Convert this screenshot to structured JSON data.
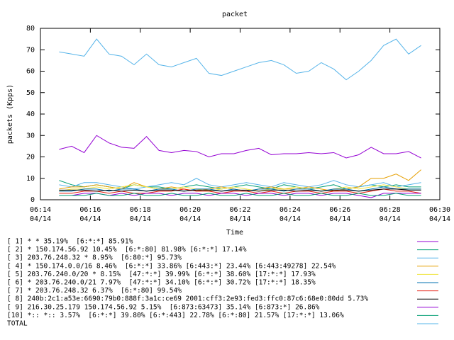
{
  "chart_data": {
    "type": "line",
    "title": "packet",
    "y_label": "packets (Kpps)",
    "x_label": "Time",
    "xlim": [
      374,
      390
    ],
    "ylim": [
      0,
      80
    ],
    "xticks": [
      {
        "value": 374,
        "label": "06:14"
      },
      {
        "value": 376,
        "label": "06:16"
      },
      {
        "value": 378,
        "label": "06:18"
      },
      {
        "value": 380,
        "label": "06:20"
      },
      {
        "value": 382,
        "label": "06:22"
      },
      {
        "value": 384,
        "label": "06:24"
      },
      {
        "value": 386,
        "label": "06:26"
      },
      {
        "value": 388,
        "label": "06:28"
      },
      {
        "value": 390,
        "label": "06:30"
      }
    ],
    "xtick_date": "04/14",
    "yticks": [
      0,
      10,
      20,
      30,
      40,
      50,
      60,
      70,
      80
    ],
    "x": [
      374.75,
      375.25,
      375.75,
      376.25,
      376.75,
      377.25,
      377.75,
      378.25,
      378.75,
      379.25,
      379.75,
      380.25,
      380.75,
      381.25,
      381.75,
      382.25,
      382.75,
      383.25,
      383.75,
      384.25,
      384.75,
      385.25,
      385.75,
      386.25,
      386.75,
      387.25,
      387.75,
      388.25,
      388.75,
      389.25
    ],
    "series": [
      {
        "name": "[ 1] * * 35.19%  [6:*:*] 85.91%",
        "color": "#9400d3",
        "values": [
          23.5,
          25,
          22,
          30,
          26.5,
          24.5,
          24,
          29.5,
          23,
          22,
          23,
          22.5,
          20,
          21.5,
          21.5,
          23,
          24,
          21,
          21.5,
          21.5,
          22,
          21.5,
          22,
          19.5,
          21,
          24.5,
          21.5,
          21.5,
          22.5,
          19.5
        ]
      },
      {
        "name": "[ 2] * 150.174.56.92 10.45%  [6:*:80] 81.98% [6:*:*] 17.14%",
        "color": "#009e73",
        "values": [
          9,
          7,
          6,
          7,
          6,
          5,
          7,
          6,
          6,
          5,
          6,
          7,
          6,
          5,
          6,
          7,
          6,
          5,
          7,
          6,
          5,
          6,
          7,
          5,
          6,
          7,
          6,
          7,
          6,
          6
        ]
      },
      {
        "name": "[ 3] 203.76.248.32 * 8.95%  [6:80:*] 95.73%",
        "color": "#56b4e9",
        "values": [
          7,
          6,
          8,
          8,
          7,
          6,
          5,
          6,
          7,
          8,
          7,
          10,
          7,
          6,
          7,
          8,
          7,
          6,
          8,
          7,
          6,
          7,
          9,
          7,
          6,
          7,
          8,
          6,
          7,
          8
        ]
      },
      {
        "name": "[ 4] * 150.174.0.0/16 8.46%  [6:*:*] 33.86% [6:443:*] 23.44% [6:443:49278] 22.54%",
        "color": "#e69f00",
        "values": [
          5,
          6,
          6,
          7,
          6,
          5,
          8,
          6,
          5,
          6,
          5,
          4,
          5,
          6,
          5,
          4,
          5,
          6,
          5,
          5,
          6,
          5,
          4,
          5,
          6,
          10,
          10,
          12,
          9,
          14
        ]
      },
      {
        "name": "[ 5] 203.76.240.0/20 * 8.15%  [47:*:*] 39.99% [6:*:*] 38.60% [17:*:*] 17.93%",
        "color": "#f0e442",
        "values": [
          4,
          5,
          5,
          6,
          5,
          6,
          7,
          6,
          5,
          5,
          6,
          5,
          4,
          5,
          6,
          5,
          4,
          5,
          5,
          6,
          5,
          4,
          5,
          6,
          5,
          6,
          7,
          6,
          5,
          5
        ]
      },
      {
        "name": "[ 6] * 203.76.240.0/21 7.97%  [47:*:*] 34.10% [6:*:*] 30.72% [17:*:*] 18.35%",
        "color": "#0072b2",
        "values": [
          4,
          4,
          5,
          5,
          4,
          5,
          5,
          4,
          5,
          5,
          4,
          5,
          5,
          4,
          5,
          4,
          5,
          5,
          4,
          5,
          5,
          4,
          5,
          5,
          4,
          5,
          6,
          5,
          5,
          5
        ]
      },
      {
        "name": "[ 7] * 203.76.248.32 6.37%  [6:*:80] 99.54%",
        "color": "#e51e10",
        "values": [
          3,
          3,
          4,
          4,
          3,
          4,
          3,
          3,
          4,
          4,
          5,
          4,
          4,
          3,
          4,
          4,
          3,
          4,
          3,
          4,
          4,
          3,
          4,
          4,
          3,
          4,
          5,
          4,
          4,
          3
        ]
      },
      {
        "name": "[ 8] 240b:2c1:a53e:6690:79b0:888f:3a1c:ce69 2001:cff3:2e93:fed3:ffc0:87c6:68e0:80dd 5.73%",
        "color": "#000000",
        "values": [
          4.5,
          4.5,
          4.5,
          4,
          4.5,
          4,
          4.5,
          4,
          4.5,
          4.5,
          4,
          4.5,
          4.5,
          4,
          4.5,
          4.5,
          4,
          4.5,
          4.5,
          4,
          4.5,
          4,
          4.5,
          4.5,
          4,
          4.5,
          5,
          5,
          4.5,
          4.5
        ]
      },
      {
        "name": "[ 9] 216.30.25.179 150.174.56.92 5.15%  [6:873:63473] 35.14% [6:873:*] 26.86%",
        "color": "#9400d3",
        "values": [
          2,
          2,
          3,
          3,
          2,
          3,
          2,
          3,
          3,
          2,
          3,
          3,
          2,
          3,
          3,
          2,
          3,
          3,
          2,
          3,
          3,
          2,
          3,
          3,
          2,
          1,
          3,
          3,
          3,
          3
        ]
      },
      {
        "name": "[10] *:: *:: 3.57%  [6:*:*] 39.80% [6:*:443] 22.78% [6:*:80] 21.57% [17:*:*] 13.06%",
        "color": "#009e73",
        "values": [
          2,
          2,
          2,
          3,
          2,
          2,
          3,
          2,
          2,
          3,
          2,
          2,
          3,
          2,
          2,
          3,
          2,
          2,
          3,
          2,
          2,
          3,
          2,
          2,
          3,
          2,
          2,
          3,
          2,
          2
        ]
      },
      {
        "name": "TOTAL",
        "color": "#56b4e9",
        "values": [
          69,
          68,
          67,
          75,
          68,
          67,
          63,
          68,
          63,
          62,
          64,
          66,
          59,
          58,
          60,
          62,
          64,
          65,
          63,
          59,
          60,
          64,
          61,
          56,
          60,
          65,
          72,
          75,
          68,
          72
        ]
      }
    ]
  }
}
